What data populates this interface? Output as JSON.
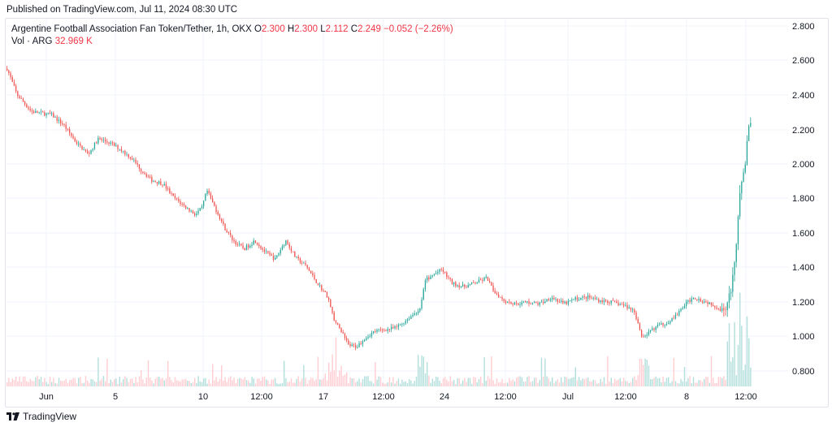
{
  "published_text": "Published on TradingView.com, Jul 11, 2024 08:30 UTC",
  "legend": {
    "symbol": "Argentine Football Association Fan Token/Tether, 1h, OKX",
    "open_label": "O",
    "open": "2.300",
    "high_label": "H",
    "high": "2.300",
    "low_label": "L",
    "low": "2.112",
    "close_label": "C",
    "close": "2.249",
    "change": "−0.052 (−2.26%)",
    "vol_label": "Vol · ARG",
    "vol_value": "32.969 K"
  },
  "footer": {
    "brand": "TradingView",
    "logo_icon": "tradingview-logo-icon"
  },
  "colors": {
    "up": "#26a69a",
    "down": "#ef5350",
    "vol_up": "#b2dfdb",
    "vol_down": "#ffcdd2",
    "grid": "#f0f3fa"
  },
  "chart_data": {
    "type": "candlestick",
    "y_ticks": [
      "2.800",
      "2.600",
      "2.400",
      "2.200",
      "2.000",
      "1.800",
      "1.600",
      "1.400",
      "1.200",
      "1.000",
      "0.800"
    ],
    "ylim": [
      0.7,
      2.84
    ],
    "x_ticks": [
      "Jun",
      "5",
      "10",
      "12:00",
      "17",
      "12:00",
      "24",
      "12:00",
      "Jul",
      "12:00",
      "8",
      "12:00"
    ],
    "grid": true,
    "price_path": [
      [
        0,
        2.55
      ],
      [
        12,
        2.4
      ],
      [
        30,
        2.3
      ],
      [
        55,
        2.28
      ],
      [
        70,
        2.22
      ],
      [
        85,
        2.12
      ],
      [
        100,
        2.05
      ],
      [
        112,
        2.14
      ],
      [
        125,
        2.12
      ],
      [
        140,
        2.08
      ],
      [
        155,
        2.02
      ],
      [
        165,
        1.96
      ],
      [
        178,
        1.9
      ],
      [
        192,
        1.88
      ],
      [
        205,
        1.8
      ],
      [
        218,
        1.75
      ],
      [
        232,
        1.7
      ],
      [
        240,
        1.74
      ],
      [
        246,
        1.84
      ],
      [
        255,
        1.75
      ],
      [
        268,
        1.62
      ],
      [
        280,
        1.54
      ],
      [
        292,
        1.5
      ],
      [
        305,
        1.55
      ],
      [
        318,
        1.48
      ],
      [
        330,
        1.44
      ],
      [
        343,
        1.55
      ],
      [
        355,
        1.45
      ],
      [
        368,
        1.4
      ],
      [
        382,
        1.3
      ],
      [
        395,
        1.22
      ],
      [
        403,
        1.08
      ],
      [
        412,
        1.02
      ],
      [
        420,
        0.94
      ],
      [
        430,
        0.93
      ],
      [
        440,
        0.98
      ],
      [
        452,
        1.02
      ],
      [
        465,
        1.03
      ],
      [
        478,
        1.04
      ],
      [
        490,
        1.08
      ],
      [
        500,
        1.12
      ],
      [
        508,
        1.15
      ],
      [
        515,
        1.32
      ],
      [
        525,
        1.35
      ],
      [
        535,
        1.38
      ],
      [
        548,
        1.3
      ],
      [
        562,
        1.28
      ],
      [
        575,
        1.3
      ],
      [
        590,
        1.33
      ],
      [
        600,
        1.25
      ],
      [
        612,
        1.2
      ],
      [
        625,
        1.18
      ],
      [
        640,
        1.19
      ],
      [
        655,
        1.18
      ],
      [
        670,
        1.22
      ],
      [
        685,
        1.18
      ],
      [
        700,
        1.21
      ],
      [
        715,
        1.22
      ],
      [
        730,
        1.2
      ],
      [
        745,
        1.19
      ],
      [
        760,
        1.17
      ],
      [
        772,
        1.14
      ],
      [
        782,
        0.98
      ],
      [
        790,
        1.02
      ],
      [
        800,
        1.05
      ],
      [
        812,
        1.07
      ],
      [
        825,
        1.12
      ],
      [
        835,
        1.18
      ],
      [
        845,
        1.22
      ],
      [
        855,
        1.2
      ],
      [
        868,
        1.18
      ],
      [
        880,
        1.14
      ],
      [
        888,
        1.2
      ],
      [
        893,
        1.32
      ],
      [
        897,
        1.5
      ],
      [
        901,
        1.78
      ],
      [
        905,
        1.9
      ],
      [
        909,
        1.98
      ],
      [
        912,
        2.22
      ],
      [
        916,
        2.25
      ]
    ]
  }
}
